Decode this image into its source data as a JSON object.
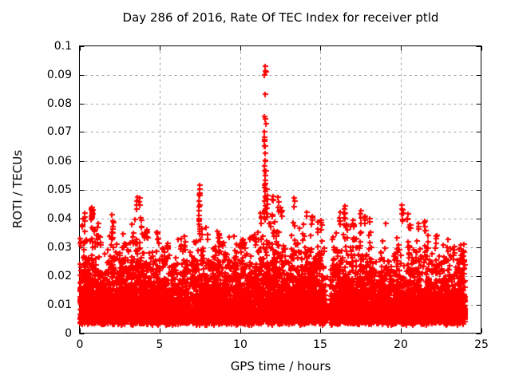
{
  "chart_data": {
    "type": "scatter",
    "title": "Day 286 of 2016, Rate Of TEC Index for receiver ptld",
    "xlabel": "GPS time / hours",
    "ylabel": "ROTI / TECUs",
    "xlim": [
      0,
      25
    ],
    "ylim": [
      0,
      0.1
    ],
    "xticks": {
      "values": [
        0,
        5,
        10,
        15,
        20,
        25
      ],
      "labels": [
        "0",
        "5",
        "10",
        "15",
        "20",
        "25"
      ]
    },
    "yticks": {
      "values": [
        0,
        0.01,
        0.02,
        0.03,
        0.04,
        0.05,
        0.06,
        0.07,
        0.08,
        0.09,
        0.1
      ],
      "labels": [
        "0",
        "0.01",
        "0.02",
        "0.03",
        "0.04",
        "0.05",
        "0.06",
        "0.07",
        "0.08",
        "0.09",
        "0.1"
      ]
    },
    "grid": true,
    "legend": "none",
    "marker": {
      "shape": "plus",
      "color": "#ff0000",
      "size": 7,
      "thickness": 2
    },
    "colors": {
      "grid": "#a0a0a0",
      "axis": "#000000",
      "background": "#ffffff",
      "text": "#000000"
    },
    "data_hours_span": [
      0,
      24
    ],
    "n_points": 9000,
    "render_seed": 286,
    "band_envelope": {
      "comment": "upper edge of the dense red band (TECU) sampled every 0.5 h from 0 to 24 h; band floor ~0.004",
      "x_step": 0.5,
      "bottom": 0.004,
      "top": [
        0.033,
        0.029,
        0.031,
        0.026,
        0.029,
        0.024,
        0.027,
        0.031,
        0.029,
        0.027,
        0.025,
        0.027,
        0.025,
        0.027,
        0.026,
        0.029,
        0.027,
        0.029,
        0.026,
        0.024,
        0.026,
        0.028,
        0.03,
        0.036,
        0.033,
        0.031,
        0.028,
        0.03,
        0.029,
        0.031,
        0.029,
        0.02,
        0.029,
        0.027,
        0.029,
        0.031,
        0.028,
        0.026,
        0.027,
        0.026,
        0.029,
        0.029,
        0.027,
        0.026,
        0.027,
        0.026,
        0.027,
        0.024,
        0.021
      ]
    },
    "density_gaps": [
      {
        "x0": 15.3,
        "x1": 15.62,
        "keep": 0.15
      }
    ],
    "spike_clusters": [
      {
        "x": 0.05,
        "ys": [
          0.0305,
          0.0315,
          0.032,
          0.033
        ]
      },
      {
        "x": 0.3,
        "ys": [
          0.04,
          0.0415
        ]
      },
      {
        "x": 0.75,
        "ys": [
          0.04,
          0.041,
          0.042,
          0.0425,
          0.043,
          0.0435,
          0.0405,
          0.0415,
          0.042,
          0.043
        ]
      },
      {
        "x": 1.15,
        "ys": [
          0.037,
          0.0385
        ]
      },
      {
        "x": 2.05,
        "ys": [
          0.036,
          0.0375,
          0.039,
          0.041
        ]
      },
      {
        "x": 3.3,
        "ys": [
          0.0335,
          0.035,
          0.038
        ]
      },
      {
        "x": 3.55,
        "ys": [
          0.0435,
          0.0445,
          0.046,
          0.047
        ]
      },
      {
        "x": 3.7,
        "ys": [
          0.0455,
          0.047
        ]
      },
      {
        "x": 3.85,
        "ys": [
          0.0346,
          0.037,
          0.04
        ]
      },
      {
        "x": 4.2,
        "ys": [
          0.0335,
          0.035,
          0.036
        ]
      },
      {
        "x": 4.85,
        "ys": [
          0.033,
          0.0345,
          0.0355
        ]
      },
      {
        "x": 5.5,
        "ys": [
          0.03,
          0.0315
        ]
      },
      {
        "x": 6.3,
        "ys": [
          0.031,
          0.0325
        ]
      },
      {
        "x": 7.45,
        "ys": [
          0.035,
          0.0365,
          0.038,
          0.0395,
          0.041,
          0.0425,
          0.044,
          0.046,
          0.0475,
          0.049,
          0.0505,
          0.0512
        ]
      },
      {
        "x": 7.6,
        "ys": [
          0.0345,
          0.036
        ]
      },
      {
        "x": 8.7,
        "ys": [
          0.03,
          0.0315,
          0.033,
          0.0345
        ]
      },
      {
        "x": 9.3,
        "ys": [
          0.0335
        ]
      },
      {
        "x": 10.2,
        "ys": [
          0.031,
          0.0325
        ]
      },
      {
        "x": 10.9,
        "ys": [
          0.033,
          0.0345
        ]
      },
      {
        "x": 11.3,
        "ys": [
          0.038,
          0.04,
          0.042
        ]
      },
      {
        "x": 11.55,
        "ys": [
          0.0925,
          0.0915,
          0.083,
          0.0755,
          0.0745,
          0.07,
          0.0685,
          0.0665,
          0.065,
          0.0625,
          0.06,
          0.058,
          0.0565,
          0.055,
          0.0535,
          0.052,
          0.0505,
          0.049,
          0.0475,
          0.046,
          0.0445,
          0.043,
          0.0415,
          0.04
        ]
      },
      {
        "x": 11.7,
        "ys": [
          0.05,
          0.048,
          0.0465,
          0.045,
          0.0435,
          0.042
        ]
      },
      {
        "x": 12.05,
        "ys": [
          0.0465,
          0.048
        ]
      },
      {
        "x": 12.35,
        "ys": [
          0.0425,
          0.044,
          0.0455,
          0.047
        ]
      },
      {
        "x": 12.55,
        "ys": [
          0.042,
          0.0435
        ]
      },
      {
        "x": 13.35,
        "ys": [
          0.044,
          0.0455,
          0.047
        ]
      },
      {
        "x": 14.15,
        "ys": [
          0.0405,
          0.042
        ]
      },
      {
        "x": 14.5,
        "ys": [
          0.0395,
          0.041
        ]
      },
      {
        "x": 15.05,
        "ys": [
          0.038,
          0.0395
        ]
      },
      {
        "x": 16.2,
        "ys": [
          0.039,
          0.0405,
          0.042
        ]
      },
      {
        "x": 16.5,
        "ys": [
          0.038,
          0.04,
          0.0415,
          0.043,
          0.044
        ]
      },
      {
        "x": 17.05,
        "ys": [
          0.038,
          0.0395
        ]
      },
      {
        "x": 17.75,
        "ys": [
          0.038,
          0.0395,
          0.041
        ]
      },
      {
        "x": 18.1,
        "ys": [
          0.0385,
          0.04
        ]
      },
      {
        "x": 19.1,
        "ys": [
          0.038
        ]
      },
      {
        "x": 20.1,
        "ys": [
          0.04,
          0.0415,
          0.043,
          0.0445
        ]
      },
      {
        "x": 20.45,
        "ys": [
          0.04,
          0.0415
        ]
      },
      {
        "x": 20.6,
        "ys": [
          0.0365,
          0.038
        ]
      },
      {
        "x": 21.1,
        "ys": [
          0.0365,
          0.038
        ]
      },
      {
        "x": 21.5,
        "ys": [
          0.0355,
          0.037,
          0.039
        ]
      },
      {
        "x": 22.2,
        "ys": [
          0.0325,
          0.034
        ]
      },
      {
        "x": 22.9,
        "ys": [
          0.0325
        ]
      },
      {
        "x": 23.3,
        "ys": [
          0.0275,
          0.029,
          0.03
        ]
      },
      {
        "x": 23.9,
        "ys": [
          0.025,
          0.027,
          0.029
        ]
      }
    ]
  }
}
